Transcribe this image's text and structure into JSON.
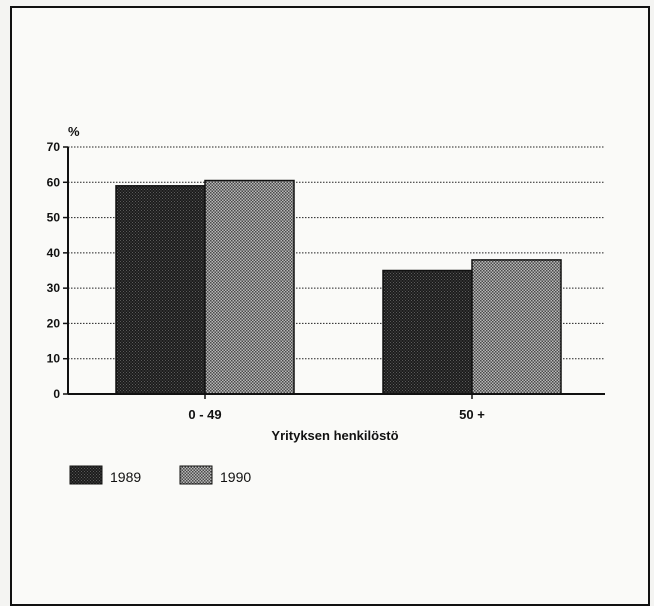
{
  "chart_data": {
    "type": "bar",
    "categories": [
      "0 - 49",
      "50 +"
    ],
    "series": [
      {
        "name": "1989",
        "values": [
          59,
          35
        ],
        "pattern": "dark"
      },
      {
        "name": "1990",
        "values": [
          60.5,
          38
        ],
        "pattern": "light"
      }
    ],
    "ylabel": "%",
    "xlabel": "Yrityksen henkilöstö",
    "ylim": [
      0,
      70
    ],
    "yticks": [
      0,
      10,
      20,
      30,
      40,
      50,
      60,
      70
    ],
    "grid": true,
    "legend": "bottom-left"
  },
  "colors": {
    "dark_bar": "#2a2a2a",
    "light_bar": "#8c8c8c",
    "grid": "#222222"
  }
}
